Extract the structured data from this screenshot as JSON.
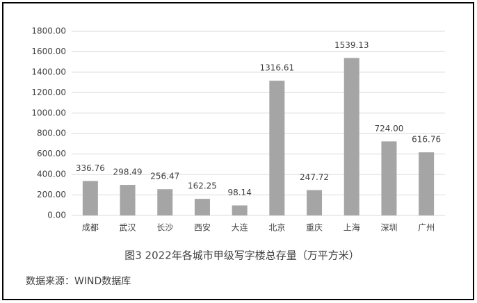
{
  "chart_data": {
    "type": "bar",
    "title": "图3 2022年各城市甲级写字楼总存量（万平方米）",
    "source": "数据来源：WIND数据库",
    "categories": [
      "成都",
      "武汉",
      "长沙",
      "西安",
      "大连",
      "北京",
      "重庆",
      "上海",
      "深圳",
      "广州"
    ],
    "values": [
      336.76,
      298.49,
      256.47,
      162.25,
      98.14,
      1316.61,
      247.72,
      1539.13,
      724.0,
      616.76
    ],
    "value_labels": [
      "336.76",
      "298.49",
      "256.47",
      "162.25",
      "98.14",
      "1316.61",
      "247.72",
      "1539.13",
      "724.00",
      "616.76"
    ],
    "color": "#a5a5a5",
    "ylim": [
      0,
      1800
    ],
    "yticks": [
      {
        "value": 0,
        "label": "0.00"
      },
      {
        "value": 200,
        "label": "200.00"
      },
      {
        "value": 400,
        "label": "400.00"
      },
      {
        "value": 600,
        "label": "600.00"
      },
      {
        "value": 800,
        "label": "800.00"
      },
      {
        "value": 1000,
        "label": "1000.00"
      },
      {
        "value": 1200,
        "label": "1200.00"
      },
      {
        "value": 1400,
        "label": "1400.00"
      },
      {
        "value": 1600,
        "label": "1600.00"
      },
      {
        "value": 1800,
        "label": "1800.00"
      }
    ],
    "grid": true
  }
}
